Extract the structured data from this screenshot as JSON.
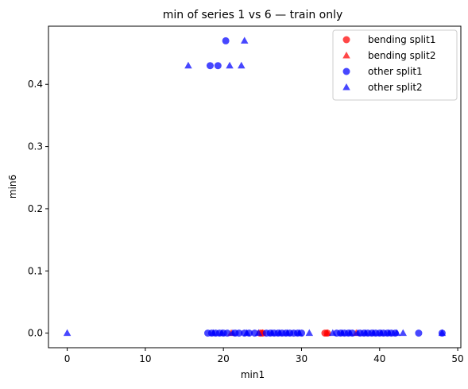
{
  "chart_data": {
    "type": "scatter",
    "title": "min of series 1 vs 6 — train only",
    "xlabel": "min1",
    "ylabel": "min6",
    "xlim": [
      -2.4,
      50.4
    ],
    "ylim": [
      -0.0235,
      0.4935
    ],
    "xticks": [
      0,
      10,
      20,
      30,
      40,
      50
    ],
    "yticks": [
      0.0,
      0.1,
      0.2,
      0.3,
      0.4
    ],
    "ytick_labels": [
      "0.0",
      "0.1",
      "0.2",
      "0.3",
      "0.4"
    ],
    "grid": false,
    "legend_position": "top-right",
    "series": [
      {
        "name": "bending split1",
        "marker": "circle",
        "color": "#ff0000",
        "points": [
          [
            24.7,
            0.0
          ],
          [
            25.0,
            0.0
          ],
          [
            33.0,
            0.0
          ],
          [
            33.3,
            0.0
          ]
        ]
      },
      {
        "name": "bending split2",
        "marker": "triangle",
        "color": "#ff0000",
        "points": [
          [
            21.0,
            0.0
          ],
          [
            25.0,
            0.0
          ],
          [
            33.3,
            0.0
          ],
          [
            37.0,
            0.0
          ]
        ]
      },
      {
        "name": "other split1",
        "marker": "circle",
        "color": "#0000ff",
        "points": [
          [
            20.3,
            0.47
          ],
          [
            18.3,
            0.43
          ],
          [
            19.3,
            0.43
          ],
          [
            18.0,
            0.0
          ],
          [
            18.5,
            0.0
          ],
          [
            19.0,
            0.0
          ],
          [
            19.5,
            0.0
          ],
          [
            20.0,
            0.0
          ],
          [
            20.5,
            0.0
          ],
          [
            21.5,
            0.0
          ],
          [
            22.0,
            0.0
          ],
          [
            22.7,
            0.0
          ],
          [
            23.3,
            0.0
          ],
          [
            24.0,
            0.0
          ],
          [
            25.5,
            0.0
          ],
          [
            26.0,
            0.0
          ],
          [
            26.5,
            0.0
          ],
          [
            27.0,
            0.0
          ],
          [
            27.5,
            0.0
          ],
          [
            28.0,
            0.0
          ],
          [
            28.5,
            0.0
          ],
          [
            29.0,
            0.0
          ],
          [
            29.5,
            0.0
          ],
          [
            30.0,
            0.0
          ],
          [
            34.5,
            0.0
          ],
          [
            35.0,
            0.0
          ],
          [
            35.5,
            0.0
          ],
          [
            36.0,
            0.0
          ],
          [
            36.5,
            0.0
          ],
          [
            37.5,
            0.0
          ],
          [
            38.0,
            0.0
          ],
          [
            38.5,
            0.0
          ],
          [
            39.0,
            0.0
          ],
          [
            39.5,
            0.0
          ],
          [
            40.0,
            0.0
          ],
          [
            40.5,
            0.0
          ],
          [
            41.0,
            0.0
          ],
          [
            41.5,
            0.0
          ],
          [
            42.0,
            0.0
          ],
          [
            45.0,
            0.0
          ],
          [
            48.0,
            0.0
          ]
        ]
      },
      {
        "name": "other split2",
        "marker": "triangle",
        "color": "#0000ff",
        "points": [
          [
            22.7,
            0.47
          ],
          [
            15.5,
            0.43
          ],
          [
            20.8,
            0.43
          ],
          [
            22.3,
            0.43
          ],
          [
            0.0,
            0.0
          ],
          [
            18.7,
            0.0
          ],
          [
            19.8,
            0.0
          ],
          [
            21.2,
            0.0
          ],
          [
            23.0,
            0.0
          ],
          [
            24.5,
            0.0
          ],
          [
            26.2,
            0.0
          ],
          [
            27.2,
            0.0
          ],
          [
            28.2,
            0.0
          ],
          [
            29.7,
            0.0
          ],
          [
            31.0,
            0.0
          ],
          [
            34.0,
            0.0
          ],
          [
            35.2,
            0.0
          ],
          [
            36.2,
            0.0
          ],
          [
            37.2,
            0.0
          ],
          [
            38.2,
            0.0
          ],
          [
            39.2,
            0.0
          ],
          [
            40.2,
            0.0
          ],
          [
            41.2,
            0.0
          ],
          [
            42.2,
            0.0
          ],
          [
            43.0,
            0.0
          ],
          [
            48.0,
            0.0
          ]
        ]
      }
    ]
  }
}
